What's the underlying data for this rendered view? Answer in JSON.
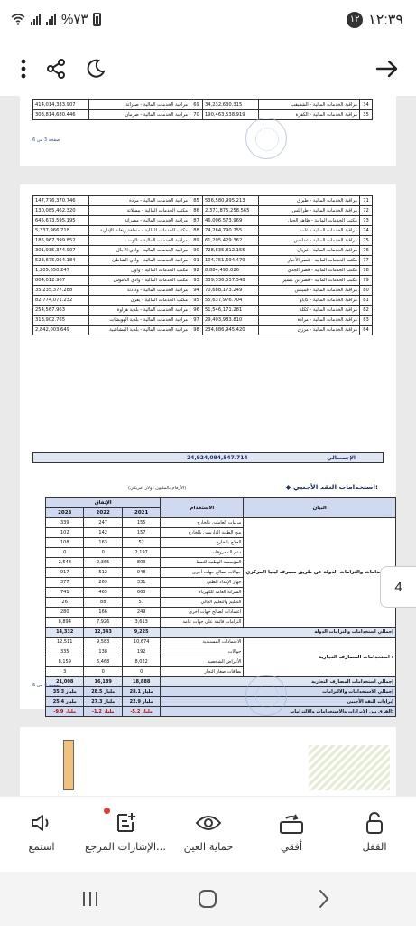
{
  "status": {
    "time": "١٢:٣٩",
    "notif_count": "١٢",
    "battery": "%٧٣"
  },
  "toolbar": {
    "back_icon": "arrow-right-icon",
    "night_icon": "moon-icon",
    "share_icon": "share-icon",
    "menu_icon": "more-vertical-icon"
  },
  "page1": {
    "rows": [
      {
        "idx_r": "34",
        "lbl_r": "مراقبة الخدمات المالية - الشقيقب",
        "num_r": "34,232,630.315",
        "idx_l": "69",
        "lbl_l": "مراقبة الخدمات المالية - صبراتة",
        "num_l": "414,014,333.907"
      },
      {
        "idx_r": "35",
        "lbl_r": "مراقبة الخدمات المالية - الكفرة",
        "num_r": "190,463,538.919",
        "idx_l": "70",
        "lbl_l": "مراقبة الخدمات المالية - صرمان",
        "num_l": "303,814,680.446"
      }
    ],
    "page_label": "صفحة 3 من 6"
  },
  "page2": {
    "rows": [
      {
        "idx_r": "71",
        "lbl_r": "مراقبة الخدمات المالية - طبرق",
        "num_r": "536,580,995.213",
        "idx_l": "85",
        "lbl_l": "مراقبة الخدمات المالية - مزدة",
        "num_l": "147,776,370.746"
      },
      {
        "idx_r": "72",
        "lbl_r": "مراقبة الخدمات المالية - طرابلس",
        "num_r": "2,371,875,258.565",
        "idx_l": "86",
        "lbl_l": "مكتب الخدمات المالية - مسلاتة",
        "num_l": "130,085,462.320"
      },
      {
        "idx_r": "73",
        "lbl_r": "مكتب الخدمات المالية - ظاهر الجبل",
        "num_r": "46,006,573.969",
        "idx_l": "87",
        "lbl_l": "مراقبة الخدمات المالية - مصراتة",
        "num_l": "645,673,595.195"
      },
      {
        "idx_r": "74",
        "lbl_r": "مراقبة الخدمات المالية - غات",
        "num_r": "74,264,790.255",
        "idx_l": "88",
        "lbl_l": "مكتب الخدمات المالية - منطقة زيغانة الإدارية",
        "num_l": "5,337,966.718"
      },
      {
        "idx_r": "75",
        "lbl_r": "مراقبة الخدمات المالية - غدامس",
        "num_r": "61,205,429.362",
        "idx_l": "89",
        "lbl_l": "مراقبة الخدمات المالية - نالوت",
        "num_l": "185,967,399.852"
      },
      {
        "idx_r": "76",
        "lbl_r": "مراقبة الخدمات المالية - غريان",
        "num_r": "728,835,812.155",
        "idx_l": "90",
        "lbl_l": "مراقبة الخدمات المالية - وادي الاجال",
        "num_l": "301,935,374.907"
      },
      {
        "idx_r": "77",
        "lbl_r": "مكتب الخدمات المالية - قصر الأخيار",
        "num_r": "104,751,694.479",
        "idx_l": "91",
        "lbl_l": "مراقبة الخدمات المالية - وادي الشاطئ",
        "num_l": "523,675,964.184"
      },
      {
        "idx_r": "78",
        "lbl_r": "مكتب الخدمات المالية - قصر الجدي",
        "num_r": "8,884,490.026",
        "idx_l": "92",
        "lbl_l": "مكتب الخدمات المالية - واول",
        "num_l": "1,205,650.247"
      },
      {
        "idx_r": "79",
        "lbl_r": "مكتب الخدمات المالية - قصر بن غشير",
        "num_r": "339,336,537.548",
        "idx_l": "93",
        "lbl_l": "مكتب الخدمات المالية - وادي الناموس",
        "num_l": "804,012.967"
      },
      {
        "idx_r": "80",
        "lbl_r": "مراقبة الخدمات المالية - قمينس",
        "num_r": "70,688,173.249",
        "idx_l": "94",
        "lbl_l": "مراقبة الخدمات المالية - ودادنة",
        "num_l": "35,235,377.288"
      },
      {
        "idx_r": "81",
        "lbl_r": "مراقبة الخدمات المالية - كاباو",
        "num_r": "55,637,976.704",
        "idx_l": "95",
        "lbl_l": "مكتب الخدمات المالية - يفرن",
        "num_l": "82,774,071.232"
      },
      {
        "idx_r": "82",
        "lbl_r": "مراقبة الخدمات المالية - ككلة",
        "num_r": "51,546,171.281",
        "idx_l": "96",
        "lbl_l": "مراقبة الخدمات المالية - بلدية هراوة",
        "num_l": "254,567.963"
      },
      {
        "idx_r": "83",
        "lbl_r": "مراقبة الخدمات المالية - مرادة",
        "num_r": "29,403,983.810",
        "idx_l": "97",
        "lbl_l": "مراقبة الخدمات المالية - بلدية الهويشات",
        "num_l": "313,902.765"
      },
      {
        "idx_r": "84",
        "lbl_r": "مراقبة الخدمات المالية - مرزق",
        "num_r": "234,886,945.420",
        "idx_l": "98",
        "lbl_l": "مراقبة الخدمات المالية - بلدية المشاشية",
        "num_l": "2,842,003.649"
      }
    ],
    "total_label": "الإجمـــالي",
    "total_value": "24,924,094,547.714",
    "section_title": "استخدامات النقد الأجنبي:",
    "section_note": "(الأرقام بالمليون دولار أمريكي)",
    "fx": {
      "h_statement": "البيان",
      "h_use": "الاستخدام",
      "h_spend": "الإنفاق",
      "years": [
        "2021",
        "2022",
        "2023"
      ],
      "group1": "استخدامات والتزامات الدولة عن طريق مصرف ليبيا المركزي:",
      "group1_rows": [
        {
          "label": "مرتبات العاملين بالخارج",
          "v2021": "155",
          "v2022": "247",
          "v2023": "339"
        },
        {
          "label": "منح الطلبة الدارسين بالخارج",
          "v2021": "157",
          "v2022": "142",
          "v2023": "102"
        },
        {
          "label": "العلاج بالخارج",
          "v2021": "52",
          "v2022": "163",
          "v2023": "108"
        },
        {
          "label": "دعم المحروقات",
          "v2021": "2,197",
          "v2022": "0",
          "v2023": "0"
        },
        {
          "label": "المؤسسة الوطنية للنفط",
          "v2021": "803",
          "v2022": "2,365",
          "v2023": "2,548"
        },
        {
          "label": "حوالات لصالح جهات أخرى",
          "v2021": "948",
          "v2022": "512",
          "v2023": "917"
        },
        {
          "label": "جهاز الإمداد الطبي",
          "v2021": "331",
          "v2022": "269",
          "v2023": "377"
        },
        {
          "label": "الشركة العامة للكهرباء",
          "v2021": "663",
          "v2022": "465",
          "v2023": "741"
        },
        {
          "label": "التعليم والتعليم العالي",
          "v2021": "57",
          "v2022": "88",
          "v2023": "26"
        },
        {
          "label": "اعتمادات لصالح جهات أخرى",
          "v2021": "249",
          "v2022": "166",
          "v2023": "280"
        },
        {
          "label": "التزامات قائمة على جهات عامة",
          "v2021": "3,613",
          "v2022": "7,926",
          "v2023": "8,894"
        }
      ],
      "sub1": {
        "label": "إجمالي استخدامات والتزامات الدولة",
        "v2021": "9,225",
        "v2022": "12,343",
        "v2023": "14,332"
      },
      "group2": "استخدامات المصارف التجارية :",
      "group2_rows": [
        {
          "label": "الاعتمادات المستندية",
          "v2021": "10,674",
          "v2022": "9,583",
          "v2023": "12,511"
        },
        {
          "label": "حوالات",
          "v2021": "192",
          "v2022": "138",
          "v2023": "335"
        },
        {
          "label": "الأغراض الشخصية",
          "v2021": "8,022",
          "v2022": "6,468",
          "v2023": "8,159"
        },
        {
          "label": "بطاقات صغار التجار",
          "v2021": "0",
          "v2022": "0",
          "v2023": "3"
        }
      ],
      "sub2": {
        "label": "إجمالي استخدامات المصارف التجارية",
        "v2021": "18,888",
        "v2022": "16,189",
        "v2023": "21,008"
      },
      "tot1": {
        "label": "إجمالي الاستخدامات والالتزامات",
        "v2021": "28.1 مليار",
        "v2022": "28.5 مليار",
        "v2023": "35.3 مليار"
      },
      "tot2": {
        "label": "إيرادات النقد الأجنبي",
        "v2021": "22.9 مليار",
        "v2022": "27.3 مليار",
        "v2023": "25.4 مليار"
      },
      "tot3": {
        "label": "الفرق بين الإيرادات والاستخدامات والالتزامات:",
        "v2021": "-5.2 مليار",
        "v2022": "-1.2 مليار",
        "v2023": "-9.9 مليار"
      }
    },
    "page_label": "صفحة 4 من 6"
  },
  "callout_number": "4",
  "actions": [
    {
      "label": "القفل",
      "icon": "lock-rotation-icon"
    },
    {
      "label": "أفقي",
      "icon": "landscape-icon"
    },
    {
      "label": "حماية العين",
      "icon": "eye-icon"
    },
    {
      "label": "الإشارات المرجع...",
      "icon": "bookmark-add-icon"
    },
    {
      "label": "استمع",
      "icon": "speaker-icon"
    }
  ],
  "nav": {
    "recents_icon": "recents-icon",
    "home_icon": "home-icon",
    "back_icon": "back-chevron-icon"
  }
}
